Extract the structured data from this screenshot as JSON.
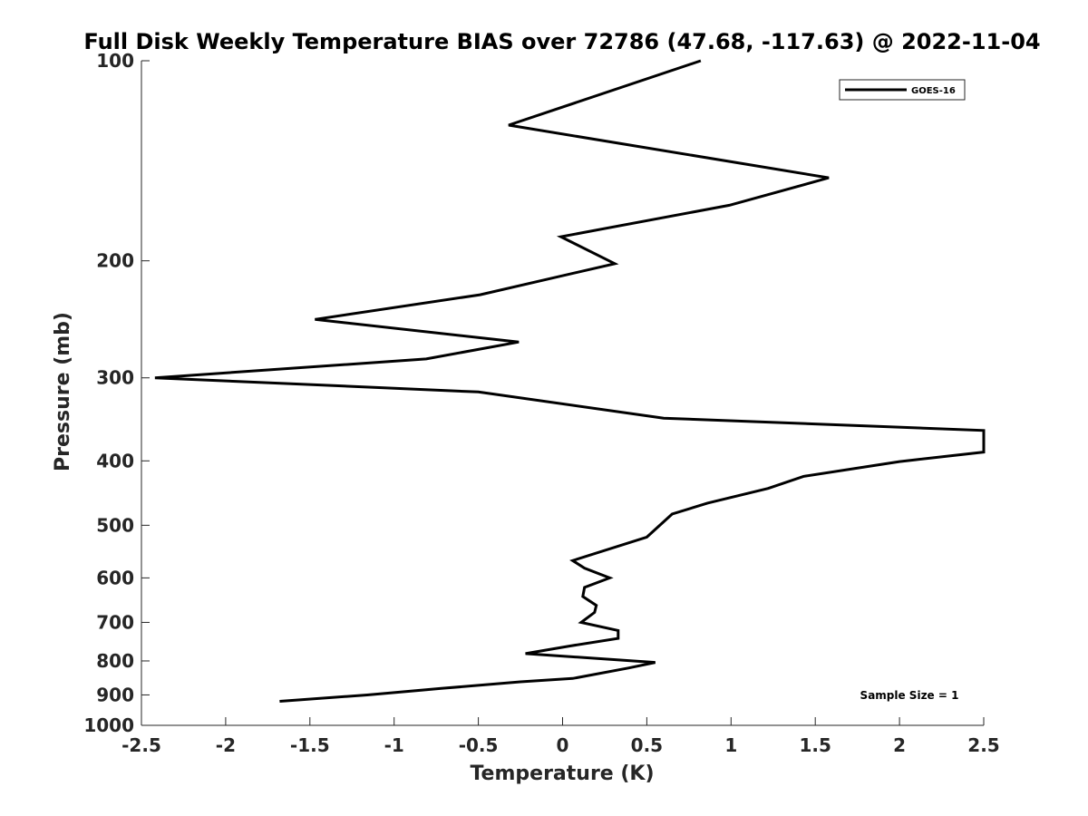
{
  "chart_data": {
    "type": "line",
    "title": "Full Disk Weekly Temperature BIAS over 72786 (47.68, -117.63) @ 2022-11-04",
    "xlabel": "Temperature (K)",
    "ylabel": "Pressure (mb)",
    "xlim": [
      -2.5,
      2.5
    ],
    "ylim": [
      100,
      1000
    ],
    "yscale": "log",
    "y_reversed": true,
    "x_ticks": [
      "-2.5",
      "-2",
      "-1.5",
      "-1",
      "-0.5",
      "0",
      "0.5",
      "1",
      "1.5",
      "2",
      "2.5"
    ],
    "y_ticks": [
      "100",
      "200",
      "300",
      "400",
      "500",
      "600",
      "700",
      "800",
      "900",
      "1000"
    ],
    "grid": false,
    "legend_position": "top-right",
    "annotation": "Sample Size = 1",
    "series": [
      {
        "name": "GOES-16",
        "color": "#000000",
        "points": [
          [
            0.82,
            100
          ],
          [
            -0.32,
            125
          ],
          [
            1.58,
            150
          ],
          [
            0.99,
            165
          ],
          [
            -0.01,
            184
          ],
          [
            0.31,
            202
          ],
          [
            -0.49,
            225
          ],
          [
            -1.47,
            245
          ],
          [
            -0.26,
            265
          ],
          [
            -0.81,
            281
          ],
          [
            -2.42,
            300
          ],
          [
            -0.5,
            315
          ],
          [
            0.6,
            345
          ],
          [
            2.5,
            360
          ],
          [
            2.5,
            388
          ],
          [
            2.0,
            401
          ],
          [
            1.43,
            422
          ],
          [
            1.22,
            440
          ],
          [
            0.86,
            463
          ],
          [
            0.65,
            481
          ],
          [
            0.5,
            521
          ],
          [
            0.06,
            565
          ],
          [
            0.13,
            580
          ],
          [
            0.28,
            600
          ],
          [
            0.13,
            620
          ],
          [
            0.12,
            640
          ],
          [
            0.2,
            660
          ],
          [
            0.19,
            676
          ],
          [
            0.11,
            700
          ],
          [
            0.33,
            720
          ],
          [
            0.33,
            740
          ],
          [
            0.04,
            760
          ],
          [
            -0.22,
            780
          ],
          [
            0.55,
            804
          ],
          [
            0.39,
            820
          ],
          [
            0.06,
            850
          ],
          [
            -0.25,
            860
          ],
          [
            -0.72,
            880
          ],
          [
            -1.16,
            900
          ],
          [
            -1.68,
            920
          ]
        ]
      }
    ]
  }
}
